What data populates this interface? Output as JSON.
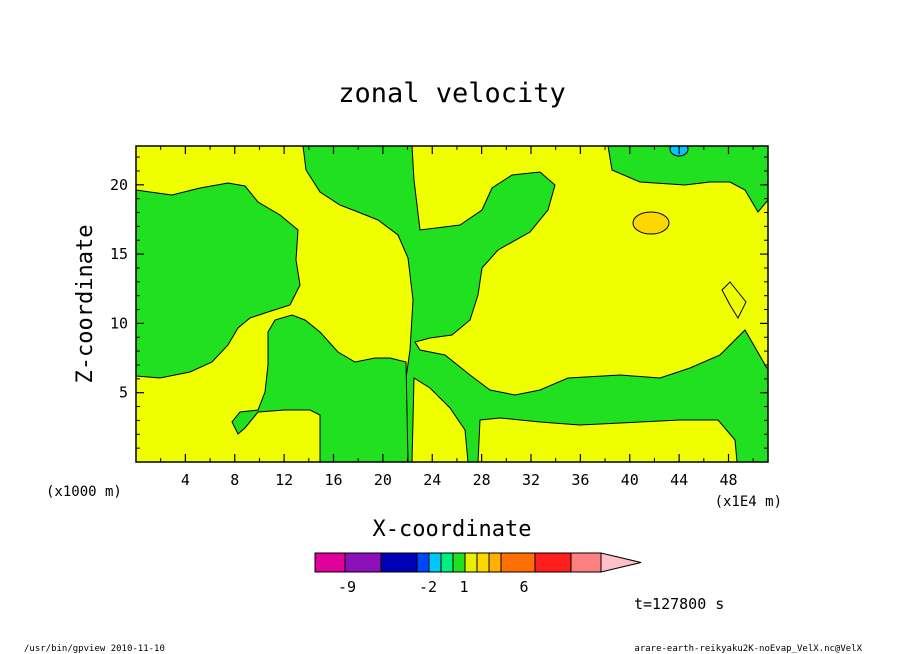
{
  "chart_data": {
    "type": "contour",
    "title": "zonal velocity",
    "xlabel": "X-coordinate",
    "ylabel": "Z-coordinate",
    "x_scale_label": "(x1E4 m)",
    "y_scale_label": "(x1000 m)",
    "xlim": [
      0,
      51.2
    ],
    "ylim": [
      0,
      22.8
    ],
    "x_ticks": [
      4,
      8,
      12,
      16,
      20,
      24,
      28,
      32,
      36,
      40,
      44,
      48
    ],
    "y_ticks": [
      5,
      10,
      15,
      20
    ],
    "colorbar": {
      "colors": [
        "#e0009a",
        "#8c10b8",
        "#0000b4",
        "#0046ff",
        "#00c8ff",
        "#00f080",
        "#20e020",
        "#e8f000",
        "#ffd700",
        "#ffb000",
        "#ff6e00",
        "#ff1e1e",
        "#ff8080",
        "#ffc0c8"
      ],
      "labels": [
        {
          "text": "-9",
          "value": -9
        },
        {
          "text": "-2",
          "value": -2
        },
        {
          "text": "1",
          "value": 1
        },
        {
          "text": "6",
          "value": 6
        }
      ]
    },
    "regions": [
      {
        "name": "region-green-left",
        "level": "green",
        "color": "#20e020"
      },
      {
        "name": "region-green-center",
        "level": "green",
        "color": "#20e020"
      },
      {
        "name": "region-green-bottom",
        "level": "green",
        "color": "#20e020"
      },
      {
        "name": "region-green-right",
        "level": "green",
        "color": "#20e020"
      },
      {
        "name": "region-orange-patch",
        "level": "orange",
        "color": "#ffd700",
        "center": [
          41.5,
          17.2
        ]
      },
      {
        "name": "region-cyan-patch",
        "level": "cyan",
        "color": "#00c8ff",
        "center": [
          43.6,
          22.5
        ]
      }
    ],
    "background_color": "#f0ff00"
  },
  "annotations": {
    "time": "t=127800 s",
    "footer_left": "/usr/bin/gpview  2010-11-10",
    "footer_right": "arare-earth-reikyaku2K-noEvap_VelX.nc@VelX"
  }
}
